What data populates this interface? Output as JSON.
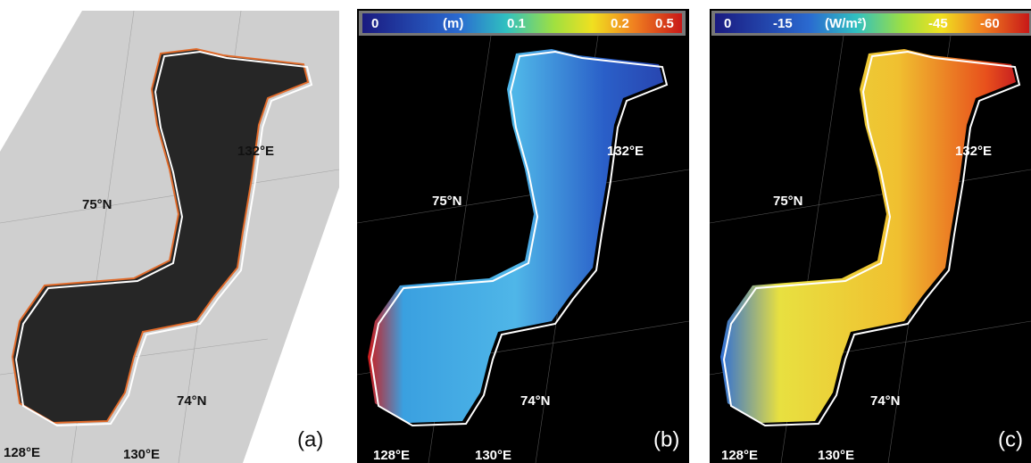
{
  "panels": [
    {
      "label": "(a)",
      "lat_labels": [
        "75°N",
        "74°N"
      ],
      "lon_labels": [
        "132°E",
        "128°E",
        "130°E"
      ]
    },
    {
      "label": "(b)",
      "colorbar": [
        "0",
        "(m)",
        "0.1",
        "0.2",
        "0.5"
      ],
      "lat_labels": [
        "75°N",
        "74°N"
      ],
      "lon_labels": [
        "132°E",
        "128°E",
        "130°E"
      ]
    },
    {
      "label": "(c)",
      "colorbar": [
        "0",
        "-15",
        "(W/m²)",
        "-45",
        "-60"
      ],
      "lat_labels": [
        "75°N",
        "74°N"
      ],
      "lon_labels": [
        "132°E",
        "128°E",
        "130°E"
      ]
    }
  ]
}
